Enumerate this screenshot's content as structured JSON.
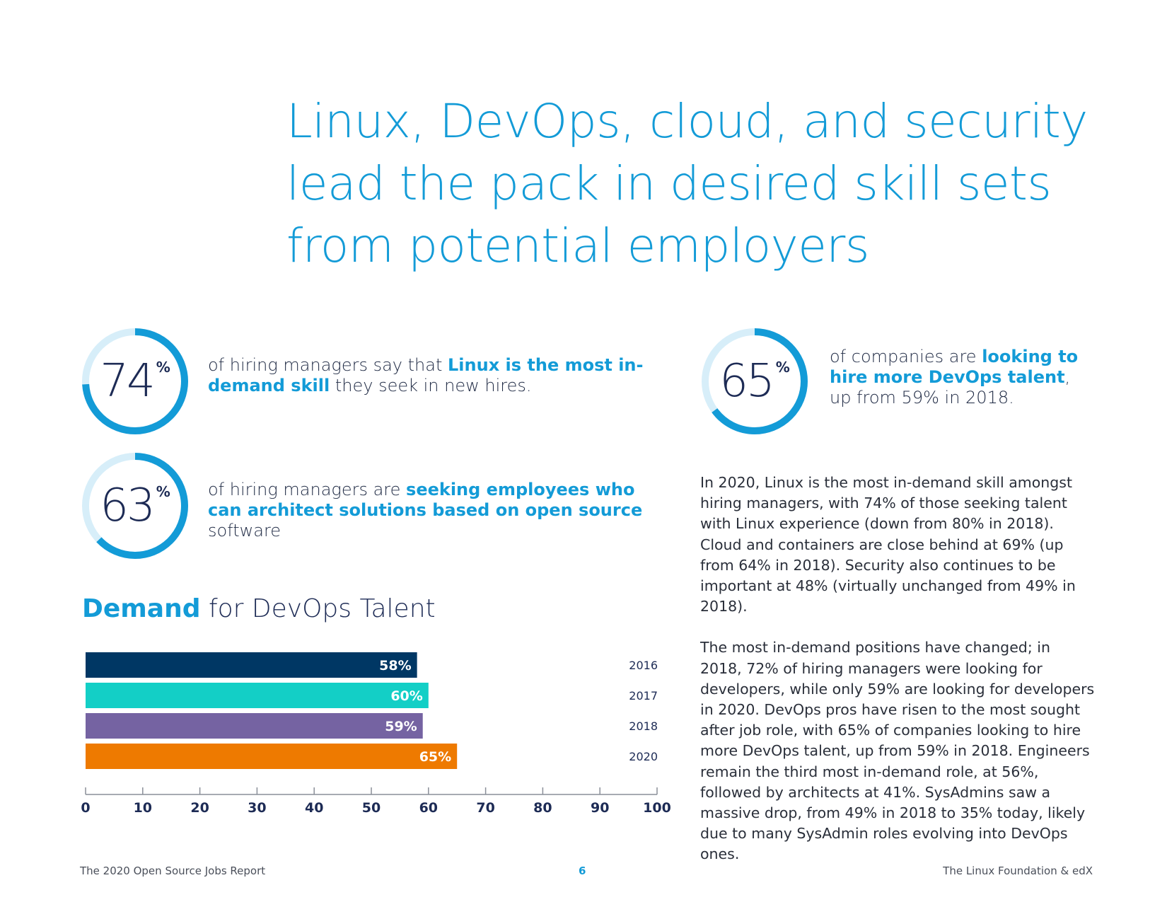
{
  "headline": {
    "line1": "Linux, DevOps, cloud, and security",
    "line2": "lead the pack in desired skill sets",
    "line3": "from potential employers"
  },
  "stats": [
    {
      "value": 74,
      "number": "74",
      "unit": "%",
      "text_pre": "of hiring managers say that ",
      "text_bold": "Linux is the most in-demand skill",
      "text_post": " they seek in new hires."
    },
    {
      "value": 63,
      "number": "63",
      "unit": "%",
      "text_pre": "of hiring managers are ",
      "text_bold": "seeking employees who can architect solutions based on open source",
      "text_post": " software"
    },
    {
      "value": 65,
      "number": "65",
      "unit": "%",
      "text_pre": "of companies are ",
      "text_bold": "looking to hire more DevOps talent",
      "text_post": ", up from 59% in 2018."
    }
  ],
  "colors": {
    "accent": "#139bd7",
    "ring_track": "#d7eef9",
    "dark": "#1d2b55"
  },
  "chart_title": {
    "bold": "Demand",
    "rest": " for DevOps Talent"
  },
  "chart_data": {
    "type": "bar",
    "title": "Demand for DevOps Talent",
    "categories": [
      "2016",
      "2017",
      "2018",
      "2020"
    ],
    "values": [
      58,
      60,
      59,
      65
    ],
    "value_labels": [
      "58%",
      "60%",
      "59%",
      "65%"
    ],
    "colors": [
      "#003764",
      "#13cfc6",
      "#7563a2",
      "#ee7a00"
    ],
    "xlim": [
      0,
      100
    ],
    "ticks": [
      "0",
      "10",
      "20",
      "30",
      "40",
      "50",
      "60",
      "70",
      "80",
      "90",
      "100"
    ],
    "xlabel": "",
    "ylabel": ""
  },
  "body": {
    "p1": "In 2020, Linux is the most in-demand skill amongst hiring managers, with 74% of those seeking talent with Linux experience (down from 80% in 2018). Cloud and containers are close behind at 69% (up from 64% in 2018). Security also continues to be important at 48% (virtually unchanged from 49% in 2018).",
    "p2": "The most in-demand positions have changed; in 2018, 72% of hiring managers were looking for developers, while only 59% are looking for developers in 2020. DevOps pros have risen to the most sought after job role, with 65% of companies looking to hire more DevOps talent, up from 59% in 2018. Engineers remain the third most in-demand role, at 56%, followed by architects at 41%. SysAdmins saw a massive drop, from 49% in 2018 to 35% today, likely due to many SysAdmin roles evolving into DevOps ones."
  },
  "footer": {
    "left": "The 2020 Open Source Jobs Report",
    "page": "6",
    "right": "The Linux Foundation & edX"
  }
}
